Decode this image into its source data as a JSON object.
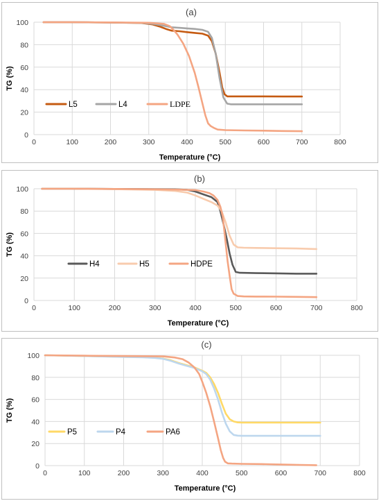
{
  "chart_data": [
    {
      "type": "line",
      "title": "(a)",
      "xlabel": "Temperature (°C)",
      "ylabel": "TG (%)",
      "xlim": [
        0,
        800
      ],
      "ylim": [
        0,
        100
      ],
      "x_ticks": [
        "0",
        "100",
        "200",
        "300",
        "400",
        "500",
        "600",
        "700",
        "800"
      ],
      "y_ticks": [
        "0",
        "20",
        "40",
        "60",
        "80",
        "100"
      ],
      "grid": true,
      "legend": "inside-lower-left",
      "series": [
        {
          "name": "L5",
          "color": "#c55a11",
          "x": [
            25,
            100,
            200,
            280,
            310,
            330,
            345,
            360,
            380,
            400,
            420,
            440,
            455,
            465,
            475,
            485,
            492,
            498,
            505,
            515,
            550,
            600,
            650,
            700
          ],
          "y": [
            100,
            100,
            99.7,
            99.3,
            98,
            96,
            94,
            92.5,
            92,
            91.2,
            90.5,
            89.8,
            88,
            83,
            72,
            55,
            42,
            36,
            34,
            34,
            34,
            34,
            33.9,
            33.9
          ]
        },
        {
          "name": "L4",
          "color": "#a5a5a5",
          "x": [
            25,
            100,
            200,
            280,
            310,
            330,
            345,
            360,
            380,
            400,
            420,
            440,
            455,
            465,
            475,
            485,
            495,
            505,
            515,
            550,
            600,
            650,
            700
          ],
          "y": [
            100,
            100,
            99.7,
            99.4,
            98.6,
            97.5,
            96.5,
            95.5,
            95,
            94.5,
            94,
            93.2,
            91.5,
            86,
            72,
            50,
            33,
            27.5,
            27,
            27,
            27,
            27,
            27
          ]
        },
        {
          "name": "LDPE",
          "color": "#f4a582",
          "x": [
            25,
            100,
            200,
            300,
            340,
            355,
            365,
            375,
            390,
            405,
            420,
            430,
            440,
            448,
            455,
            462,
            470,
            480,
            500,
            550,
            600,
            650,
            700
          ],
          "y": [
            100,
            100,
            99.8,
            99.5,
            98.5,
            96.5,
            93,
            89,
            81,
            70,
            55,
            42,
            28,
            17,
            10,
            7.5,
            6,
            4.5,
            4,
            3.7,
            3.5,
            3.2,
            3
          ]
        }
      ]
    },
    {
      "type": "line",
      "title": "(b)",
      "xlabel": "Temperature (°C)",
      "ylabel": "TG (%)",
      "xlim": [
        0,
        800
      ],
      "ylim": [
        0,
        100
      ],
      "x_ticks": [
        "0",
        "100",
        "200",
        "300",
        "400",
        "500",
        "600",
        "700",
        "800"
      ],
      "y_ticks": [
        "0",
        "20",
        "40",
        "60",
        "80",
        "100"
      ],
      "grid": true,
      "legend": "inside-lower-left",
      "series": [
        {
          "name": "H4",
          "color": "#595959",
          "x": [
            20,
            100,
            200,
            300,
            350,
            380,
            400,
            420,
            440,
            455,
            462,
            470,
            478,
            485,
            492,
            500,
            510,
            550,
            600,
            650,
            700
          ],
          "y": [
            100,
            100,
            99.8,
            99.6,
            99.5,
            99,
            97.5,
            95,
            92.5,
            88,
            80,
            68,
            55,
            42,
            32,
            25.5,
            24.8,
            24.5,
            24.3,
            24,
            24
          ]
        },
        {
          "name": "H5",
          "color": "#f8cbad",
          "x": [
            20,
            100,
            200,
            300,
            350,
            380,
            400,
            420,
            440,
            455,
            465,
            475,
            485,
            495,
            505,
            520,
            550,
            600,
            650,
            700
          ],
          "y": [
            100,
            100,
            99.6,
            99,
            98,
            96.5,
            94,
            91,
            88,
            85,
            80,
            70,
            58,
            50,
            47.5,
            47.2,
            47,
            46.8,
            46.5,
            46
          ]
        },
        {
          "name": "HDPE",
          "color": "#f4a582",
          "x": [
            20,
            100,
            200,
            300,
            360,
            400,
            420,
            435,
            445,
            455,
            462,
            468,
            472,
            476,
            480,
            485,
            490,
            495,
            505,
            520,
            550,
            600,
            650,
            700
          ],
          "y": [
            100,
            100,
            99.8,
            99.5,
            99.2,
            98.8,
            97.5,
            96,
            94,
            90,
            84,
            75,
            62,
            48,
            35,
            22,
            10,
            6,
            4,
            3.6,
            3.5,
            3.4,
            3.2,
            3
          ]
        }
      ]
    },
    {
      "type": "line",
      "title": "(c)",
      "xlabel": "Temperature (°C)",
      "ylabel": "TG (%)",
      "xlim": [
        0,
        800
      ],
      "ylim": [
        0,
        100
      ],
      "x_ticks": [
        "0",
        "100",
        "200",
        "300",
        "400",
        "500",
        "600",
        "700",
        "800"
      ],
      "y_ticks": [
        "0",
        "20",
        "40",
        "60",
        "80",
        "100"
      ],
      "grid": true,
      "legend": "inside-lower-left",
      "series": [
        {
          "name": "P5",
          "color": "#ffd966",
          "x": [
            0,
            100,
            200,
            250,
            280,
            300,
            320,
            340,
            360,
            380,
            400,
            410,
            420,
            430,
            440,
            450,
            460,
            470,
            480,
            490,
            500,
            550,
            600,
            650,
            700
          ],
          "y": [
            100,
            99.3,
            98.6,
            98.3,
            97.8,
            97,
            95.5,
            93,
            91,
            89,
            86,
            84,
            80,
            74,
            66,
            56,
            47,
            42,
            40,
            39.2,
            39,
            39,
            39,
            39,
            39
          ]
        },
        {
          "name": "P4",
          "color": "#bdd7ee",
          "x": [
            0,
            100,
            200,
            250,
            280,
            300,
            320,
            340,
            360,
            380,
            400,
            410,
            420,
            430,
            440,
            450,
            460,
            470,
            480,
            490,
            500,
            550,
            600,
            650,
            700
          ],
          "y": [
            100,
            99.3,
            98.5,
            98.1,
            97.6,
            96.8,
            95,
            92.5,
            90.5,
            88.5,
            85.5,
            83,
            78,
            70,
            60,
            48,
            38,
            31,
            27.8,
            27.2,
            27,
            27,
            27,
            27,
            27
          ]
        },
        {
          "name": "PA6",
          "color": "#f4a582",
          "x": [
            0,
            100,
            200,
            300,
            330,
            350,
            365,
            380,
            392,
            400,
            410,
            420,
            430,
            440,
            447,
            453,
            458,
            465,
            475,
            500,
            550,
            600,
            650,
            690
          ],
          "y": [
            100,
            99.6,
            99.3,
            99,
            98,
            96.5,
            93.5,
            89,
            83,
            76,
            66,
            54,
            40,
            25,
            14,
            7,
            3.5,
            2,
            1.8,
            1.6,
            1.4,
            1,
            0.6,
            0.4
          ]
        }
      ]
    }
  ]
}
